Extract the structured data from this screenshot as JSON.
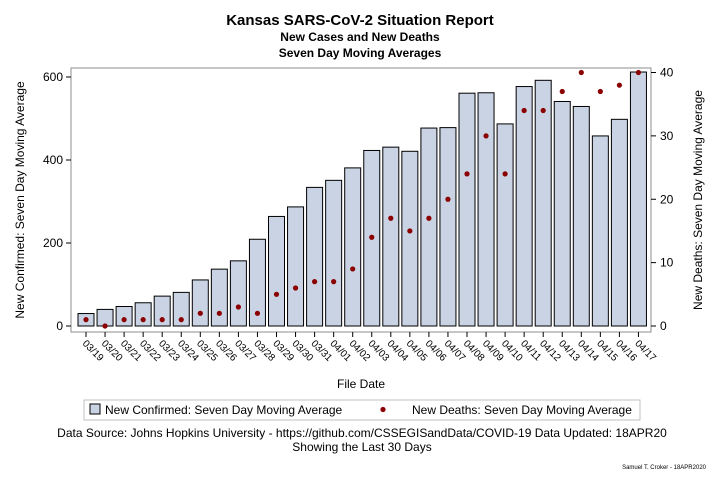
{
  "chart_data": {
    "type": "bar",
    "title": "Kansas SARS-CoV-2 Situation Report",
    "subtitle": [
      "New Cases and New Deaths",
      "Seven Day Moving Averages"
    ],
    "xlabel": "File Date",
    "ylabel": "New Confirmed: Seven Day Moving Average",
    "y2label": "New Deaths: Seven Day Moving Average",
    "ylim": [
      0,
      620
    ],
    "y2lim": [
      0,
      40.5
    ],
    "yticks": [
      "0",
      "200",
      "400",
      "600"
    ],
    "y2ticks": [
      "0",
      "10",
      "20",
      "30",
      "40"
    ],
    "categories": [
      "03/19",
      "03/20",
      "03/21",
      "03/22",
      "03/23",
      "03/24",
      "03/25",
      "03/26",
      "03/27",
      "03/28",
      "03/29",
      "03/30",
      "03/31",
      "04/01",
      "04/02",
      "04/03",
      "04/04",
      "04/05",
      "04/06",
      "04/07",
      "04/08",
      "04/09",
      "04/10",
      "04/11",
      "04/12",
      "04/13",
      "04/14",
      "04/15",
      "04/16",
      "04/17"
    ],
    "series": [
      {
        "name": "New Confirmed: Seven Day Moving Average",
        "kind": "bar",
        "axis": "left",
        "color": "#c9d3e3",
        "values": [
          30,
          40,
          47,
          56,
          72,
          81,
          111,
          137,
          157,
          209,
          264,
          287,
          334,
          351,
          381,
          423,
          431,
          421,
          477,
          478,
          561,
          562,
          487,
          577,
          592,
          541,
          529,
          458,
          498,
          612
        ]
      },
      {
        "name": "New Deaths: Seven Day Moving Average",
        "kind": "scatter",
        "axis": "right",
        "color": "#8b0000",
        "values": [
          1,
          0,
          1,
          1,
          1,
          1,
          2,
          2,
          3,
          2,
          5,
          6,
          7,
          7,
          9,
          14,
          17,
          15,
          17,
          20,
          24,
          30,
          24,
          34,
          34,
          37,
          40,
          37,
          38,
          40
        ]
      }
    ],
    "legend_position": "bottom"
  },
  "footnotes": [
    "Data Source: Johns Hopkins University - https://github.com/CSSEGISandData/COVID-19 Data Updated: 18APR20",
    "Showing the Last 30 Days"
  ],
  "credit": "Samuel T. Croker - 18APR2020"
}
